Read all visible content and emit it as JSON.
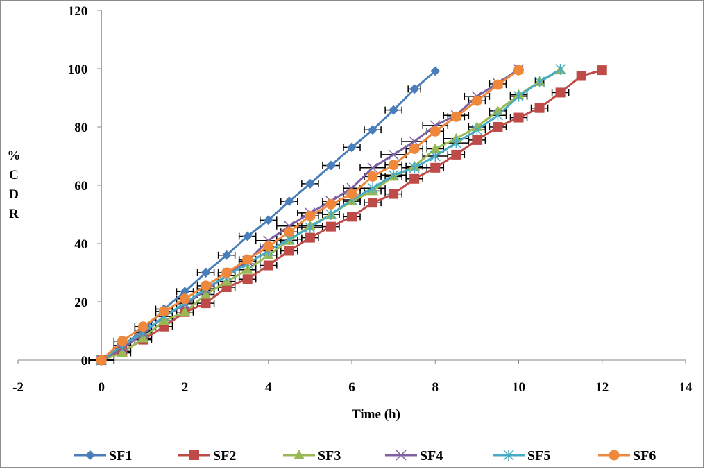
{
  "chart_data": {
    "type": "line",
    "title": "",
    "xlabel": "Time (h)",
    "ylabel": [
      "%",
      "C",
      "D",
      "R"
    ],
    "xlim": [
      -2,
      14
    ],
    "ylim": [
      0,
      120
    ],
    "xticks": [
      -2,
      0,
      2,
      4,
      6,
      8,
      10,
      12,
      14
    ],
    "yticks": [
      0,
      20,
      40,
      60,
      80,
      100,
      120
    ],
    "grid": false,
    "legend_position": "bottom",
    "series": [
      {
        "name": "SF1",
        "color": "#4a7ebb",
        "marker": "diamond",
        "x": [
          0,
          0.5,
          1,
          1.5,
          2,
          2.5,
          3,
          3.5,
          4,
          4.5,
          5,
          5.5,
          6,
          6.5,
          7,
          7.5,
          8
        ],
        "y": [
          0,
          5,
          10,
          17.5,
          23.5,
          30,
          36,
          42.5,
          48,
          54.5,
          60.5,
          66.8,
          73,
          79,
          85.8,
          93,
          99.2
        ],
        "xerr": [
          0.3,
          0.2,
          0.2,
          0.2,
          0.2,
          0.2,
          0.2,
          0.2,
          0.2,
          0.2,
          0.2,
          0.2,
          0.2,
          0.2,
          0.2,
          0.15,
          0
        ]
      },
      {
        "name": "SF2",
        "color": "#be4b48",
        "marker": "square",
        "x": [
          0,
          0.5,
          1,
          1.5,
          2,
          2.5,
          3,
          3.5,
          4,
          4.5,
          5,
          5.5,
          6,
          6.5,
          7,
          7.5,
          8,
          8.5,
          9,
          9.5,
          10,
          10.5,
          11,
          11.5,
          12
        ],
        "y": [
          0,
          3,
          7,
          11.5,
          16.5,
          19.5,
          25,
          27.8,
          32.5,
          37.5,
          42,
          45.8,
          49.2,
          54,
          57,
          62.2,
          66,
          70.5,
          75.5,
          80,
          83.2,
          86.5,
          91.8,
          97.5,
          99.5
        ],
        "xerr": [
          0.3,
          0.2,
          0.2,
          0.2,
          0.2,
          0.2,
          0.2,
          0.2,
          0.2,
          0.2,
          0.2,
          0.2,
          0.2,
          0.2,
          0.2,
          0.2,
          0.2,
          0.2,
          0.2,
          0.2,
          0.2,
          0.2,
          0.2,
          0.1,
          0
        ]
      },
      {
        "name": "SF3",
        "color": "#98b954",
        "marker": "triangle",
        "x": [
          0,
          0.5,
          1,
          1.5,
          2,
          2.5,
          3,
          3.5,
          4,
          4.5,
          5,
          5.5,
          6,
          6.5,
          7,
          7.5,
          8,
          8.5,
          9,
          9.5,
          10,
          10.5,
          11
        ],
        "y": [
          0,
          2.5,
          7.5,
          13.5,
          16.5,
          22.5,
          27,
          31,
          36,
          41,
          46,
          50,
          54.5,
          58,
          63,
          66.5,
          72.5,
          76,
          80,
          85.5,
          91,
          95.5,
          99.5
        ],
        "xerr": [
          0.3,
          0.2,
          0.2,
          0.2,
          0.2,
          0.2,
          0.2,
          0.2,
          0.2,
          0.2,
          0.3,
          0.2,
          0.2,
          0.2,
          0.2,
          0.2,
          0.2,
          0.3,
          0.2,
          0.2,
          0.2,
          0.1,
          0
        ]
      },
      {
        "name": "SF4",
        "color": "#7d60a0",
        "marker": "x",
        "x": [
          0,
          0.5,
          1,
          1.5,
          2,
          2.5,
          3,
          3.5,
          4,
          4.5,
          5,
          5.5,
          6,
          6.5,
          7,
          7.5,
          8,
          8.5,
          9,
          9.5,
          10
        ],
        "y": [
          0,
          4,
          9,
          15,
          19,
          24,
          29,
          34,
          41,
          46,
          50.5,
          54.5,
          59,
          66,
          70.5,
          75,
          80.5,
          84,
          90.5,
          95,
          99.8
        ],
        "xerr": [
          0.3,
          0.2,
          0.2,
          0.2,
          0.2,
          0.2,
          0.2,
          0.2,
          0.3,
          0.3,
          0.3,
          0.2,
          0.2,
          0.3,
          0.3,
          0.3,
          0.3,
          0.3,
          0.3,
          0.2,
          0
        ]
      },
      {
        "name": "SF5",
        "color": "#46aac5",
        "marker": "star",
        "x": [
          0,
          0.5,
          1,
          1.5,
          2,
          2.5,
          3,
          3.5,
          4,
          4.5,
          5,
          5.5,
          6,
          6.5,
          7,
          7.5,
          8,
          8.5,
          9,
          9.5,
          10,
          10.5,
          11
        ],
        "y": [
          0,
          5,
          9.5,
          15,
          19.5,
          24.5,
          29,
          33,
          37.5,
          41.5,
          45.5,
          50,
          55,
          59,
          63.5,
          66,
          70,
          74.5,
          79,
          84,
          90.5,
          95.5,
          99.8
        ],
        "xerr": [
          0.3,
          0.2,
          0.2,
          0.2,
          0.2,
          0.2,
          0.2,
          0.2,
          0.2,
          0.3,
          0.3,
          0.2,
          0.2,
          0.3,
          0.3,
          0.3,
          0.3,
          0.3,
          0.2,
          0.2,
          0.2,
          0.1,
          0
        ]
      },
      {
        "name": "SF6",
        "color": "#f0883c",
        "marker": "circle",
        "x": [
          0,
          0.5,
          1,
          1.5,
          2,
          2.5,
          3,
          3.5,
          4,
          4.5,
          5,
          5.5,
          6,
          6.5,
          7,
          7.5,
          8,
          8.5,
          9,
          9.5,
          10
        ],
        "y": [
          0,
          6.5,
          11.5,
          16.7,
          21,
          25.5,
          30,
          34.5,
          39,
          44,
          49.5,
          53.5,
          57,
          63,
          67,
          72.5,
          78.5,
          83.5,
          89,
          94.5,
          99.5
        ],
        "xerr": [
          0.3,
          0.2,
          0.2,
          0.2,
          0.2,
          0.2,
          0.2,
          0.2,
          0.2,
          0.2,
          0.2,
          0.2,
          0.2,
          0.2,
          0.2,
          0.2,
          0.2,
          0.2,
          0.2,
          0.2,
          0
        ]
      }
    ]
  }
}
